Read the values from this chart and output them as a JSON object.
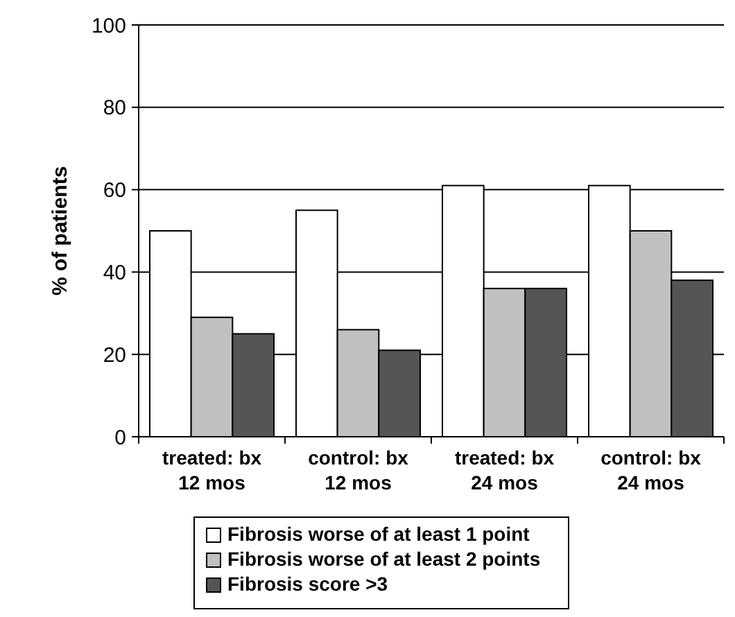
{
  "chart_data": {
    "type": "bar",
    "ylabel": "% of patients",
    "categories": [
      "treated:  bx\n12 mos",
      "control: bx\n12 mos",
      "treated: bx\n24 mos",
      "control:  bx\n24 mos"
    ],
    "series": [
      {
        "name": "Fibrosis worse of at least 1 point",
        "color": "#ffffff",
        "values": [
          50,
          55,
          61,
          61
        ]
      },
      {
        "name": "Fibrosis worse of at least 2 points",
        "color": "#c0c0c0",
        "values": [
          29,
          26,
          36,
          50
        ]
      },
      {
        "name": "Fibrosis score >3",
        "color": "#555555",
        "values": [
          25,
          21,
          36,
          38
        ]
      }
    ],
    "ylim": [
      0,
      100
    ],
    "yticks": [
      0,
      20,
      40,
      60,
      80,
      100
    ],
    "grid": "y",
    "legend": "bottom"
  }
}
